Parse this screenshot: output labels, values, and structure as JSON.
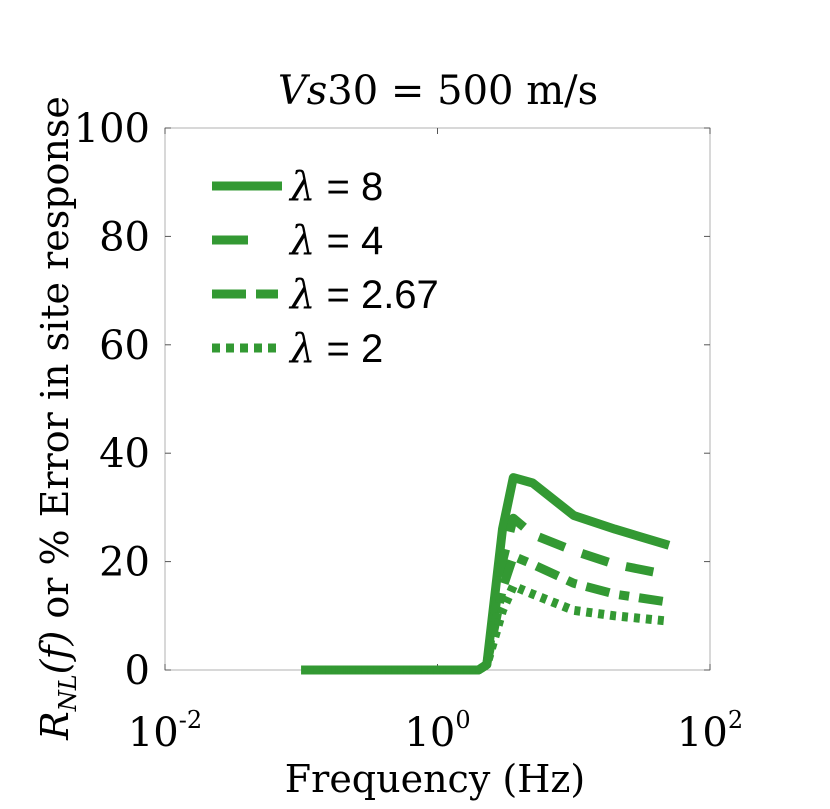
{
  "chart_data": {
    "type": "line",
    "title": "Vs30 = 500 m/s",
    "title_parts": {
      "italic": "Vs",
      "rest": "30 = 500 m/s"
    },
    "xlabel": "Frequency (Hz)",
    "ylabel": "R_NL(f) or % Error in site response",
    "ylabel_parts": {
      "script": "R",
      "sub": "NL",
      "args": "(f)",
      "rest": "or % Error in site response"
    },
    "x_scale": "log",
    "xlim": [
      0.01,
      100
    ],
    "ylim": [
      0,
      100
    ],
    "x_ticks": [
      {
        "value": 0.01,
        "base": "10",
        "exp": "-2"
      },
      {
        "value": 1,
        "base": "10",
        "exp": "0"
      },
      {
        "value": 100,
        "base": "10",
        "exp": "2"
      }
    ],
    "y_ticks": [
      {
        "value": 0,
        "label": "0"
      },
      {
        "value": 20,
        "label": "20"
      },
      {
        "value": 40,
        "label": "40"
      },
      {
        "value": 60,
        "label": "60"
      },
      {
        "value": 80,
        "label": "80"
      },
      {
        "value": 100,
        "label": "100"
      }
    ],
    "grid": false,
    "legend_position": "top-left",
    "color": "#339933",
    "x": [
      0.1,
      0.5,
      1.5,
      2.0,
      2.3,
      3.0,
      3.6,
      5.0,
      10.0,
      20.0,
      50.0
    ],
    "series": [
      {
        "name": "λ = 8",
        "greek": "λ",
        "value_text": " = 8",
        "style": "solid",
        "values": [
          0,
          0,
          0,
          0,
          1,
          26,
          35.5,
          34.5,
          28.5,
          26,
          23
        ]
      },
      {
        "name": "λ = 4",
        "greek": "λ",
        "value_text": " = 4",
        "style": "dashed",
        "values": [
          0,
          0,
          0,
          0,
          1,
          20,
          28,
          25,
          22,
          19.5,
          17.5
        ]
      },
      {
        "name": "λ = 2.67",
        "greek": "λ",
        "value_text": " = 2.67",
        "style": "dashdot",
        "values": [
          0,
          0,
          0,
          0,
          1,
          15,
          21,
          19.5,
          16,
          14,
          12.5
        ]
      },
      {
        "name": "λ = 2",
        "greek": "λ",
        "value_text": " = 2",
        "style": "dotted",
        "values": [
          0,
          0,
          0,
          0,
          1,
          11,
          15.5,
          14,
          11,
          10,
          9
        ]
      }
    ]
  }
}
